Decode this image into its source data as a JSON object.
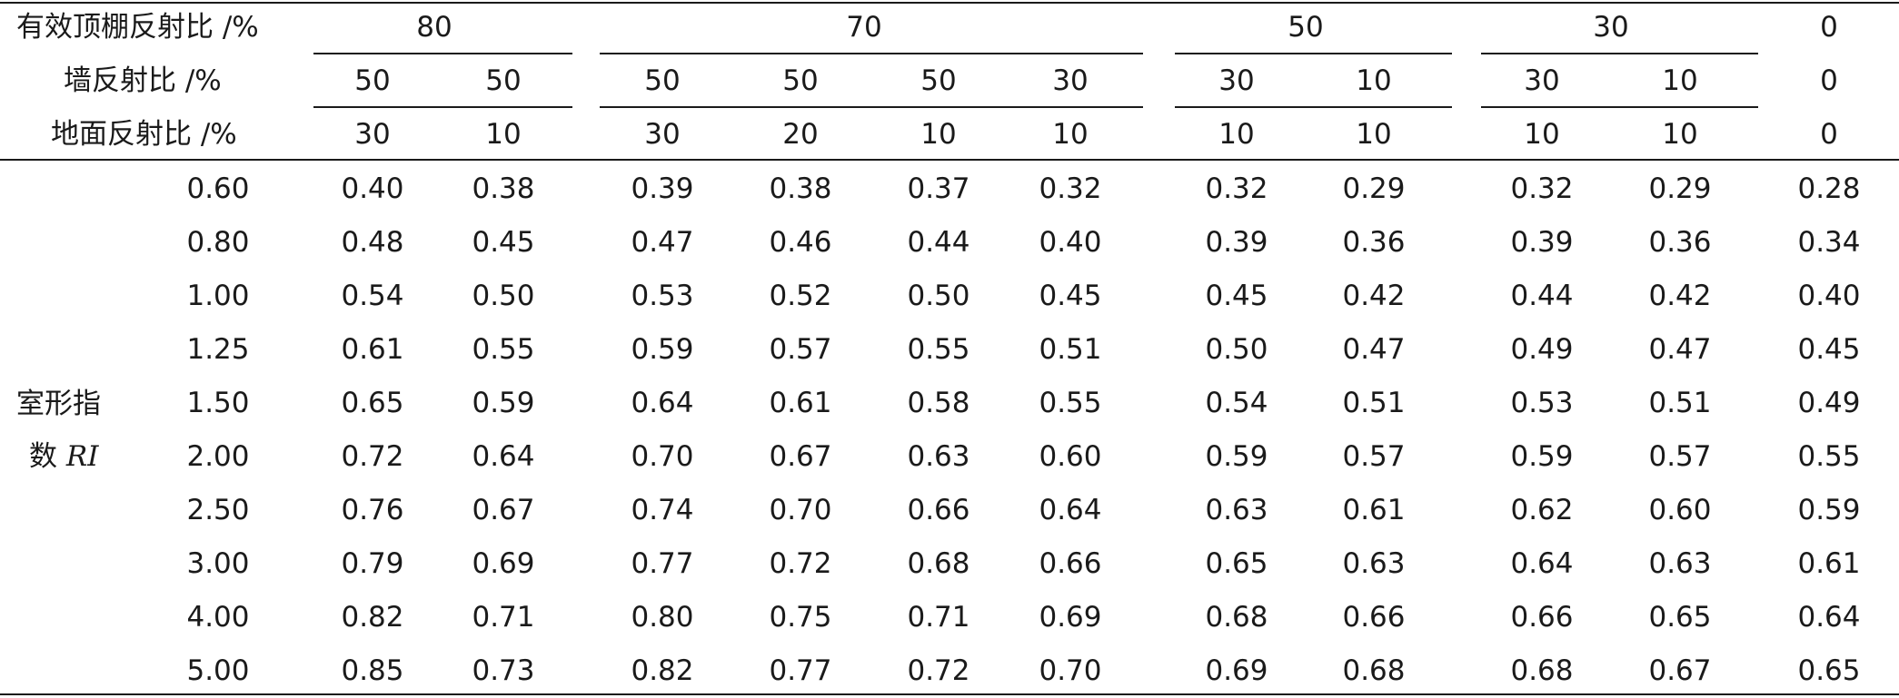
{
  "header": {
    "ceiling_label": "有效顶棚反射比 /%",
    "wall_label": "墙反射比 /%",
    "floor_label": "地面反射比 /%",
    "ceiling_groups": [
      "80",
      "70",
      "50",
      "30",
      "0"
    ],
    "wall_values": [
      "50",
      "50",
      "50",
      "50",
      "50",
      "30",
      "30",
      "10",
      "30",
      "10",
      "0"
    ],
    "floor_values": [
      "30",
      "10",
      "30",
      "20",
      "10",
      "10",
      "10",
      "10",
      "10",
      "10",
      "0"
    ]
  },
  "row_label": {
    "line1": "室形指",
    "line2_prefix": "数 ",
    "line2_var": "RI"
  },
  "rows": [
    {
      "ri": "0.60",
      "values": [
        "0.40",
        "0.38",
        "0.39",
        "0.38",
        "0.37",
        "0.32",
        "0.32",
        "0.29",
        "0.32",
        "0.29",
        "0.28"
      ]
    },
    {
      "ri": "0.80",
      "values": [
        "0.48",
        "0.45",
        "0.47",
        "0.46",
        "0.44",
        "0.40",
        "0.39",
        "0.36",
        "0.39",
        "0.36",
        "0.34"
      ]
    },
    {
      "ri": "1.00",
      "values": [
        "0.54",
        "0.50",
        "0.53",
        "0.52",
        "0.50",
        "0.45",
        "0.45",
        "0.42",
        "0.44",
        "0.42",
        "0.40"
      ]
    },
    {
      "ri": "1.25",
      "values": [
        "0.61",
        "0.55",
        "0.59",
        "0.57",
        "0.55",
        "0.51",
        "0.50",
        "0.47",
        "0.49",
        "0.47",
        "0.45"
      ]
    },
    {
      "ri": "1.50",
      "values": [
        "0.65",
        "0.59",
        "0.64",
        "0.61",
        "0.58",
        "0.55",
        "0.54",
        "0.51",
        "0.53",
        "0.51",
        "0.49"
      ]
    },
    {
      "ri": "2.00",
      "values": [
        "0.72",
        "0.64",
        "0.70",
        "0.67",
        "0.63",
        "0.60",
        "0.59",
        "0.57",
        "0.59",
        "0.57",
        "0.55"
      ]
    },
    {
      "ri": "2.50",
      "values": [
        "0.76",
        "0.67",
        "0.74",
        "0.70",
        "0.66",
        "0.64",
        "0.63",
        "0.61",
        "0.62",
        "0.60",
        "0.59"
      ]
    },
    {
      "ri": "3.00",
      "values": [
        "0.79",
        "0.69",
        "0.77",
        "0.72",
        "0.68",
        "0.66",
        "0.65",
        "0.63",
        "0.64",
        "0.63",
        "0.61"
      ]
    },
    {
      "ri": "4.00",
      "values": [
        "0.82",
        "0.71",
        "0.80",
        "0.75",
        "0.71",
        "0.69",
        "0.68",
        "0.66",
        "0.66",
        "0.65",
        "0.64"
      ]
    },
    {
      "ri": "5.00",
      "values": [
        "0.85",
        "0.73",
        "0.82",
        "0.77",
        "0.72",
        "0.70",
        "0.69",
        "0.68",
        "0.68",
        "0.67",
        "0.65"
      ]
    }
  ]
}
